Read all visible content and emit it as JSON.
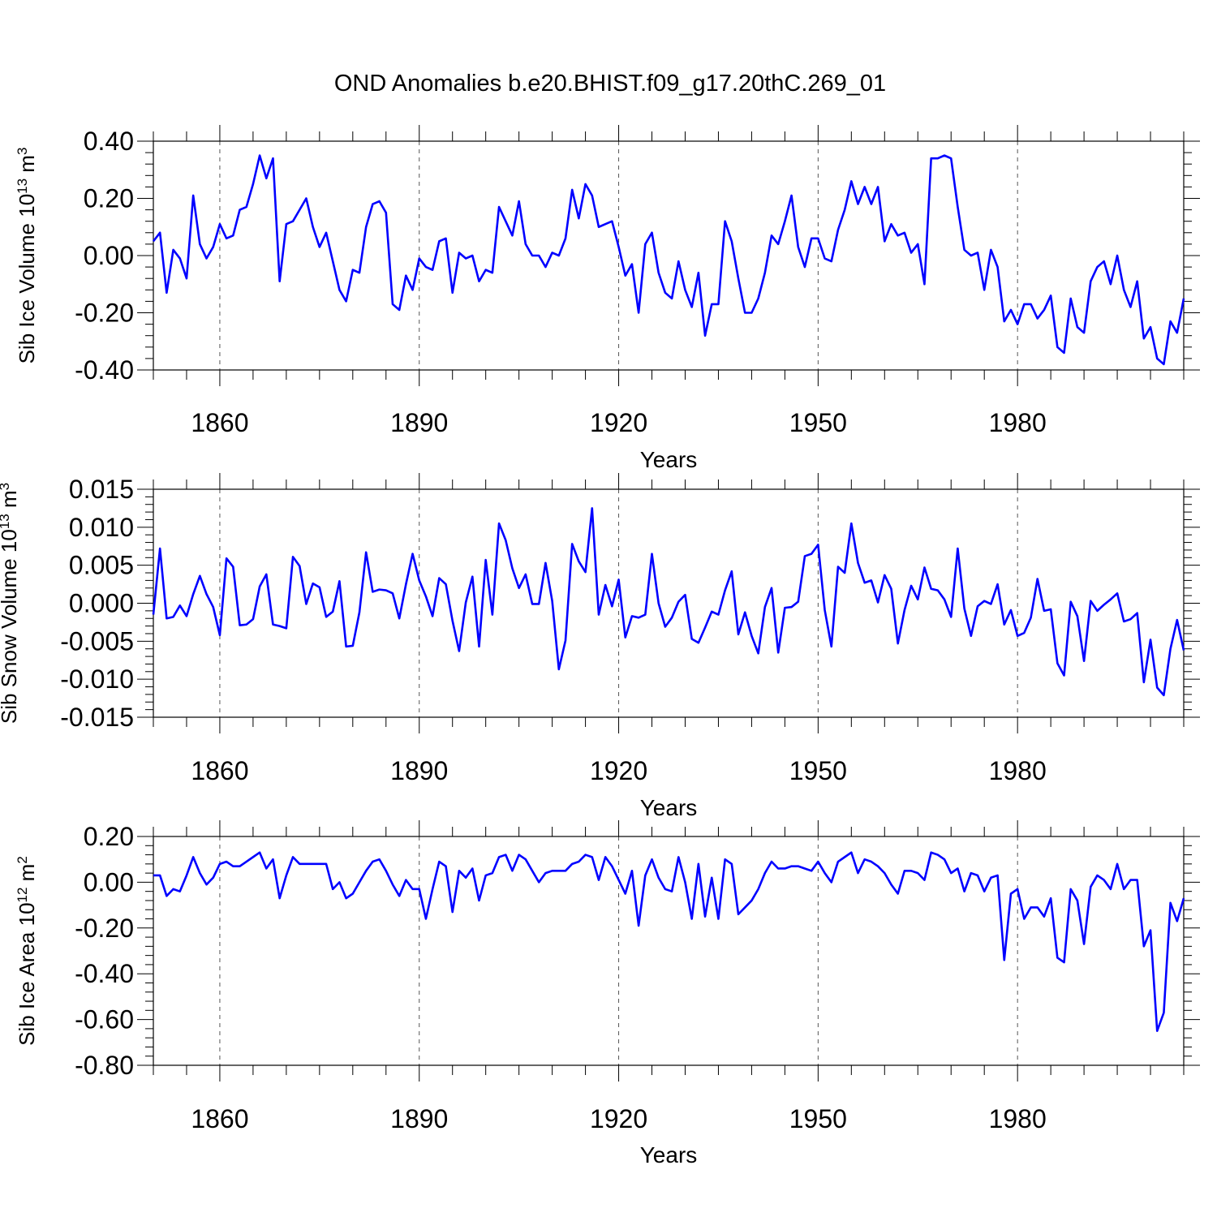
{
  "title": "OND Anomalies b.e20.BHIST.f09_g17.20thC.269_01",
  "chart_data": [
    {
      "type": "line",
      "ylabel": {
        "base": "Sib Ice Volume 10",
        "exp": "13",
        "unit": " m",
        "unit_exp": "3"
      },
      "xlabel": "Years",
      "xlim": [
        1850,
        2005
      ],
      "ylim": [
        -0.4,
        0.4
      ],
      "yticks": [
        "0.40",
        "0.20",
        "0.00",
        "-0.20",
        "-0.40"
      ],
      "ytick_values": [
        0.4,
        0.2,
        0.0,
        -0.2,
        -0.4
      ],
      "xticks": [
        "1860",
        "1890",
        "1920",
        "1950",
        "1980"
      ],
      "xtick_values": [
        1860,
        1890,
        1920,
        1950,
        1980
      ],
      "series": [
        {
          "name": "Sib Ice Volume",
          "color": "#0000ff",
          "x_start": 1850,
          "values": [
            0.05,
            0.08,
            -0.13,
            0.02,
            -0.01,
            -0.08,
            0.21,
            0.04,
            -0.01,
            0.03,
            0.11,
            0.06,
            0.07,
            0.16,
            0.17,
            0.25,
            0.35,
            0.27,
            0.34,
            -0.09,
            0.11,
            0.12,
            0.16,
            0.2,
            0.1,
            0.03,
            0.08,
            -0.02,
            -0.12,
            -0.16,
            -0.05,
            -0.06,
            0.1,
            0.18,
            0.19,
            0.15,
            -0.17,
            -0.19,
            -0.07,
            -0.12,
            -0.01,
            -0.04,
            -0.05,
            0.05,
            0.06,
            -0.13,
            0.01,
            -0.01,
            0.0,
            -0.09,
            -0.05,
            -0.06,
            0.17,
            0.12,
            0.07,
            0.19,
            0.04,
            0.0,
            0.0,
            -0.04,
            0.01,
            0.0,
            0.06,
            0.23,
            0.13,
            0.25,
            0.21,
            0.1,
            0.11,
            0.12,
            0.03,
            -0.07,
            -0.03,
            -0.2,
            0.04,
            0.08,
            -0.06,
            -0.13,
            -0.15,
            -0.02,
            -0.12,
            -0.18,
            -0.06,
            -0.28,
            -0.17,
            -0.17,
            0.12,
            0.05,
            -0.08,
            -0.2,
            -0.2,
            -0.15,
            -0.06,
            0.07,
            0.04,
            0.12,
            0.21,
            0.03,
            -0.04,
            0.06,
            0.06,
            -0.01,
            -0.02,
            0.09,
            0.16,
            0.26,
            0.18,
            0.24,
            0.18,
            0.24,
            0.05,
            0.11,
            0.07,
            0.08,
            0.01,
            0.04,
            -0.1,
            0.34,
            0.34,
            0.35,
            0.34,
            0.17,
            0.02,
            0.0,
            0.01,
            -0.12,
            0.02,
            -0.04,
            -0.23,
            -0.19,
            -0.24,
            -0.17,
            -0.17,
            -0.22,
            -0.19,
            -0.14,
            -0.32,
            -0.34,
            -0.15,
            -0.25,
            -0.27,
            -0.09,
            -0.04,
            -0.02,
            -0.1,
            0.0,
            -0.12,
            -0.18,
            -0.09,
            -0.29,
            -0.25,
            -0.36,
            -0.38,
            -0.23,
            -0.27,
            -0.15
          ]
        }
      ]
    },
    {
      "type": "line",
      "ylabel": {
        "base": "Sib Snow Volume 10",
        "exp": "13",
        "unit": " m",
        "unit_exp": "3"
      },
      "xlabel": "Years",
      "xlim": [
        1850,
        2005
      ],
      "ylim": [
        -0.015,
        0.015
      ],
      "yticks": [
        "0.015",
        "0.010",
        "0.005",
        "0.000",
        "-0.005",
        "-0.010",
        "-0.015"
      ],
      "ytick_values": [
        0.015,
        0.01,
        0.005,
        0.0,
        -0.005,
        -0.01,
        -0.015
      ],
      "xticks": [
        "1860",
        "1890",
        "1920",
        "1950",
        "1980"
      ],
      "xtick_values": [
        1860,
        1890,
        1920,
        1950,
        1980
      ],
      "series": [
        {
          "name": "Sib Snow Volume",
          "color": "#0000ff",
          "x_start": 1850,
          "values": [
            -0.0015,
            0.0072,
            -0.002,
            -0.0018,
            -0.0003,
            -0.0017,
            0.0012,
            0.0036,
            0.0012,
            -0.0005,
            -0.0042,
            0.0059,
            0.0048,
            -0.0029,
            -0.0028,
            -0.0021,
            0.0022,
            0.0038,
            -0.0028,
            -0.003,
            -0.0033,
            0.0061,
            0.0049,
            -0.0001,
            0.0026,
            0.0021,
            -0.0018,
            -0.0011,
            0.0029,
            -0.0057,
            -0.0056,
            -0.0012,
            0.0067,
            0.0015,
            0.0018,
            0.0017,
            0.0013,
            -0.002,
            0.0025,
            0.0065,
            0.003,
            0.0009,
            -0.0017,
            0.0033,
            0.0025,
            -0.0023,
            -0.0063,
            0.0001,
            0.0035,
            -0.0057,
            0.0057,
            -0.0015,
            0.0105,
            0.0083,
            0.0046,
            0.002,
            0.0038,
            -0.0001,
            -0.0001,
            0.0053,
            0.0003,
            -0.0087,
            -0.0049,
            0.0078,
            0.0055,
            0.0041,
            0.0125,
            -0.0015,
            0.0024,
            -0.0004,
            0.0031,
            -0.0045,
            -0.0017,
            -0.0019,
            -0.0015,
            0.0065,
            0.0,
            -0.0031,
            -0.0019,
            0.0002,
            0.0011,
            -0.0047,
            -0.0052,
            -0.0032,
            -0.0011,
            -0.0015,
            0.0017,
            0.0042,
            -0.0041,
            -0.0012,
            -0.0043,
            -0.0066,
            -0.0005,
            0.002,
            -0.0065,
            -0.0006,
            -0.0005,
            0.0002,
            0.0062,
            0.0065,
            0.0077,
            -0.0009,
            -0.0057,
            0.0048,
            0.004,
            0.0105,
            0.0053,
            0.0027,
            0.003,
            0.0001,
            0.0037,
            0.0019,
            -0.0053,
            -0.0009,
            0.0023,
            0.0005,
            0.0047,
            0.0019,
            0.0017,
            0.0005,
            -0.0018,
            0.0072,
            -0.0007,
            -0.0043,
            -0.0004,
            0.0003,
            -0.0001,
            0.0025,
            -0.0028,
            -0.0009,
            -0.0043,
            -0.0039,
            -0.0019,
            0.0032,
            -0.001,
            -0.0008,
            -0.0079,
            -0.0095,
            0.0002,
            -0.0017,
            -0.0076,
            0.0003,
            -0.001,
            -0.0002,
            0.0005,
            0.0013,
            -0.0024,
            -0.0021,
            -0.0013,
            -0.0104,
            -0.0048,
            -0.0111,
            -0.0121,
            -0.006,
            -0.0022,
            -0.0062
          ]
        }
      ]
    },
    {
      "type": "line",
      "ylabel": {
        "base": "Sib Ice Area 10",
        "exp": "12",
        "unit": " m",
        "unit_exp": "2"
      },
      "xlabel": "Years",
      "xlim": [
        1850,
        2005
      ],
      "ylim": [
        -0.8,
        0.2
      ],
      "yticks": [
        "0.20",
        "0.00",
        "-0.20",
        "-0.40",
        "-0.60",
        "-0.80"
      ],
      "ytick_values": [
        0.2,
        0.0,
        -0.2,
        -0.4,
        -0.6,
        -0.8
      ],
      "xticks": [
        "1860",
        "1890",
        "1920",
        "1950",
        "1980"
      ],
      "xtick_values": [
        1860,
        1890,
        1920,
        1950,
        1980
      ],
      "series": [
        {
          "name": "Sib Ice Area",
          "color": "#0000ff",
          "x_start": 1850,
          "values": [
            0.03,
            0.03,
            -0.06,
            -0.03,
            -0.04,
            0.03,
            0.11,
            0.04,
            -0.01,
            0.02,
            0.08,
            0.09,
            0.07,
            0.07,
            0.09,
            0.11,
            0.13,
            0.06,
            0.1,
            -0.07,
            0.03,
            0.11,
            0.08,
            0.08,
            0.08,
            0.08,
            0.08,
            -0.03,
            0.0,
            -0.07,
            -0.05,
            0.0,
            0.05,
            0.09,
            0.1,
            0.05,
            -0.01,
            -0.06,
            0.01,
            -0.03,
            -0.03,
            -0.16,
            -0.03,
            0.09,
            0.07,
            -0.13,
            0.05,
            0.02,
            0.06,
            -0.08,
            0.03,
            0.04,
            0.11,
            0.12,
            0.05,
            0.12,
            0.1,
            0.05,
            0.0,
            0.04,
            0.05,
            0.05,
            0.05,
            0.08,
            0.09,
            0.12,
            0.11,
            0.01,
            0.11,
            0.07,
            0.01,
            -0.05,
            0.05,
            -0.19,
            0.03,
            0.1,
            0.02,
            -0.03,
            -0.04,
            0.11,
            0.0,
            -0.16,
            0.08,
            -0.15,
            0.02,
            -0.16,
            0.1,
            0.08,
            -0.14,
            -0.11,
            -0.08,
            -0.03,
            0.04,
            0.09,
            0.06,
            0.06,
            0.07,
            0.07,
            0.06,
            0.05,
            0.09,
            0.04,
            0.0,
            0.09,
            0.11,
            0.13,
            0.04,
            0.1,
            0.09,
            0.07,
            0.04,
            -0.01,
            -0.05,
            0.05,
            0.05,
            0.04,
            0.01,
            0.13,
            0.12,
            0.1,
            0.04,
            0.06,
            -0.04,
            0.04,
            0.03,
            -0.04,
            0.02,
            0.03,
            -0.34,
            -0.05,
            -0.03,
            -0.16,
            -0.11,
            -0.11,
            -0.15,
            -0.07,
            -0.33,
            -0.35,
            -0.03,
            -0.08,
            -0.27,
            -0.02,
            0.03,
            0.01,
            -0.03,
            0.08,
            -0.03,
            0.01,
            0.01,
            -0.28,
            -0.21,
            -0.65,
            -0.57,
            -0.09,
            -0.17,
            -0.07
          ]
        }
      ]
    }
  ]
}
